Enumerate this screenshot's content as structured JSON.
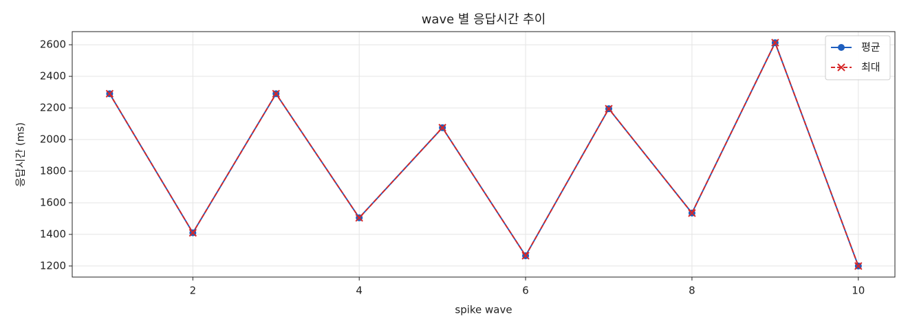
{
  "chart_data": {
    "type": "line",
    "title": "wave 별 응답시간 추이",
    "xlabel": "spike wave",
    "ylabel": "응답시간 (ms)",
    "x": [
      1,
      2,
      3,
      4,
      5,
      6,
      7,
      8,
      9,
      10
    ],
    "series": [
      {
        "name": "평균",
        "color": "#1f5fbf",
        "marker": "o",
        "linestyle": "solid",
        "values": [
          2290,
          1410,
          2290,
          1505,
          2075,
          1265,
          2195,
          1535,
          2613,
          1200
        ]
      },
      {
        "name": "최대",
        "color": "#d62728",
        "marker": "x",
        "linestyle": "dashed",
        "values": [
          2290,
          1410,
          2290,
          1505,
          2075,
          1265,
          2195,
          1535,
          2613,
          1200
        ]
      }
    ],
    "xlim": [
      0.55,
      10.44
    ],
    "xticks": [
      2,
      4,
      6,
      8,
      10
    ],
    "ylim": [
      1130,
      2683
    ],
    "yticks": [
      1200,
      1400,
      1600,
      1800,
      2000,
      2200,
      2400,
      2600
    ],
    "grid": true,
    "legend": "upper right"
  }
}
